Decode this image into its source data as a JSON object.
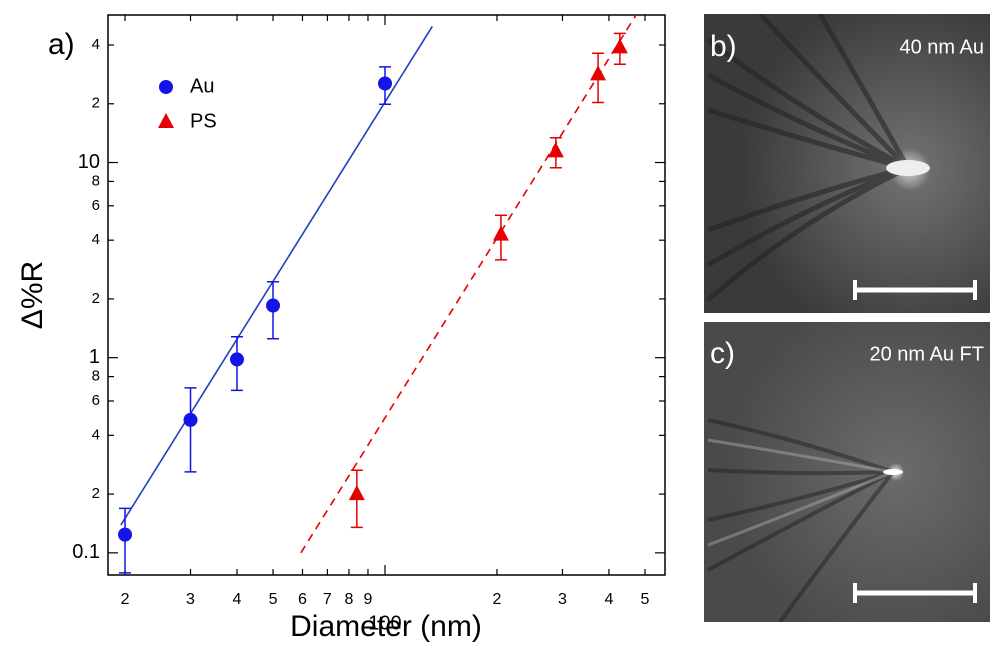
{
  "chart_data": {
    "type": "scatter",
    "panel_label": "a)",
    "x_label": "Diameter (nm)",
    "y_label": "Δ%R",
    "log_x": true,
    "log_y": true,
    "xlim": [
      18,
      566
    ],
    "ylim": [
      0.077,
      57
    ],
    "xticks": [
      {
        "value": 20,
        "label": "2"
      },
      {
        "value": 30,
        "label": "3"
      },
      {
        "value": 40,
        "label": "4"
      },
      {
        "value": 50,
        "label": "5"
      },
      {
        "value": 60,
        "label": "6"
      },
      {
        "value": 70,
        "label": "7"
      },
      {
        "value": 80,
        "label": "8"
      },
      {
        "value": 90,
        "label": "9"
      },
      100,
      {
        "value": 200,
        "label": "2"
      },
      {
        "value": 300,
        "label": "3"
      },
      {
        "value": 400,
        "label": "4"
      },
      {
        "value": 500,
        "label": "5"
      }
    ],
    "yticks": [
      0.1,
      {
        "value": 0.2,
        "label": "2"
      },
      {
        "value": 0.4,
        "label": "4"
      },
      {
        "value": 0.6,
        "label": "6"
      },
      {
        "value": 0.8,
        "label": "8"
      },
      1,
      {
        "value": 2,
        "label": "2"
      },
      {
        "value": 4,
        "label": "4"
      },
      {
        "value": 6,
        "label": "6"
      },
      {
        "value": 8,
        "label": "8"
      },
      10,
      {
        "value": 20,
        "label": "2"
      },
      {
        "value": 40,
        "label": "4"
      }
    ],
    "series": [
      {
        "name": "Au",
        "color": "#1414e6",
        "marker": "circle",
        "x": [
          20,
          30,
          40,
          50,
          100
        ],
        "values": [
          0.124,
          0.48,
          0.98,
          1.85,
          25.4
        ],
        "errors": [
          0.045,
          0.22,
          0.3,
          0.6,
          5.5
        ]
      },
      {
        "name": "PS",
        "color": "#e60000",
        "marker": "triangle",
        "x": [
          84,
          205,
          288,
          374,
          428
        ],
        "values": [
          0.2,
          4.27,
          11.4,
          28.3,
          38.9
        ],
        "errors": [
          0.065,
          1.1,
          2,
          8,
          7
        ]
      }
    ],
    "fits": [
      {
        "color": "#1f3fc0",
        "dash": false,
        "x": [
          19.5,
          134
        ],
        "values": [
          0.139,
          49.8
        ]
      },
      {
        "color": "#e60000",
        "dash": true,
        "x": [
          59.4,
          473
        ],
        "values": [
          0.1,
          57
        ]
      }
    ],
    "legend_position": "upper left"
  },
  "images": [
    {
      "panel_label": "b)",
      "caption": "40 nm Au"
    },
    {
      "panel_label": "c)",
      "caption": "20 nm Au FT"
    }
  ]
}
